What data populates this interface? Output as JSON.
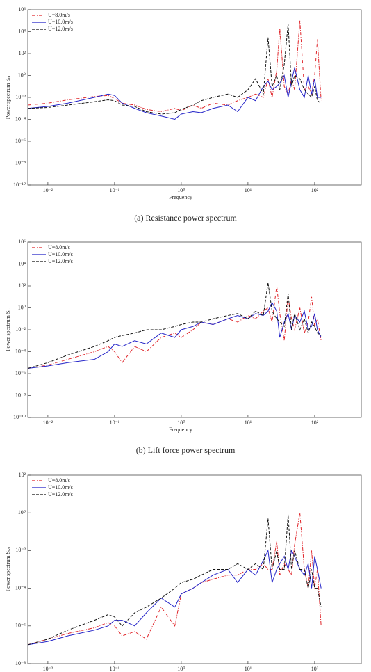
{
  "chart_data": [
    {
      "type": "line",
      "log_x": true,
      "log_y": true,
      "legend": "upper left",
      "xlabel": "Frequency",
      "ylabel": "Power spectrum S",
      "ylabel_sub": "D",
      "caption": "(a) Resistance power spectrum",
      "xlim": [
        0.005,
        500
      ],
      "ylim": [
        1e-10,
        1000000
      ],
      "xticks": [
        {
          "value": 0.01,
          "label": "10⁻²"
        },
        {
          "value": 0.1,
          "label": "10⁻¹"
        },
        {
          "value": 1,
          "label": "10⁰"
        },
        {
          "value": 10,
          "label": "10¹"
        },
        {
          "value": 100,
          "label": "10²"
        }
      ],
      "yticks": [
        {
          "value": 1e-10,
          "label": "10⁻¹⁰"
        },
        {
          "value": 1e-08,
          "label": "10⁻⁸"
        },
        {
          "value": 1e-06,
          "label": "10⁻⁶"
        },
        {
          "value": 0.0001,
          "label": "10⁻⁴"
        },
        {
          "value": 0.01,
          "label": "10⁻²"
        },
        {
          "value": 1,
          "label": "10⁰"
        },
        {
          "value": 100,
          "label": "10²"
        },
        {
          "value": 10000,
          "label": "10⁴"
        },
        {
          "value": 1000000,
          "label": "10⁶"
        }
      ],
      "x": [
        0.005,
        0.01,
        0.02,
        0.05,
        0.08,
        0.1,
        0.13,
        0.2,
        0.3,
        0.5,
        0.8,
        1,
        1.5,
        2,
        3,
        5,
        7,
        10,
        13,
        17,
        20,
        23,
        27,
        30,
        35,
        40,
        45,
        50,
        60,
        70,
        80,
        90,
        100,
        110,
        125
      ],
      "series": [
        {
          "name": "U=8.0m/s",
          "color": "#e0262b",
          "dash": "dashdot",
          "values": [
            0.002,
            0.003,
            0.006,
            0.012,
            0.015,
            0.008,
            0.003,
            0.002,
            0.0008,
            0.0005,
            0.001,
            0.0006,
            0.002,
            0.001,
            0.003,
            0.002,
            0.005,
            0.01,
            0.02,
            0.01,
            0.5,
            0.01,
            3,
            20000,
            0.1,
            0.02,
            0.5,
            0.05,
            100000,
            0.05,
            0.1,
            0.02,
            1,
            2000,
            0.005
          ]
        },
        {
          "name": "U=10.0m/s",
          "color": "#2323c8",
          "dash": "solid",
          "values": [
            0.001,
            0.0015,
            0.003,
            0.01,
            0.02,
            0.015,
            0.003,
            0.001,
            0.0004,
            0.0002,
            0.0001,
            0.0003,
            0.0005,
            0.0004,
            0.001,
            0.002,
            0.0005,
            0.01,
            0.005,
            0.1,
            0.3,
            0.05,
            0.1,
            0.2,
            1,
            0.01,
            0.3,
            5,
            0.05,
            0.01,
            1,
            0.02,
            0.5,
            0.01,
            0.01
          ]
        },
        {
          "name": "U=12.0m/s",
          "color": "#111111",
          "dash": "dash",
          "values": [
            0.001,
            0.0012,
            0.002,
            0.004,
            0.006,
            0.005,
            0.002,
            0.0015,
            0.0005,
            0.0003,
            0.0004,
            0.0008,
            0.002,
            0.005,
            0.01,
            0.02,
            0.01,
            0.05,
            0.5,
            0.02,
            3000,
            0.1,
            1,
            0.05,
            10,
            50000,
            0.1,
            1,
            0.5,
            0.05,
            0.02,
            0.01,
            0.1,
            0.005,
            0.003
          ]
        }
      ]
    },
    {
      "type": "line",
      "log_x": true,
      "log_y": true,
      "legend": "upper left",
      "xlabel": "Frequency",
      "ylabel": "Power spectrum S",
      "ylabel_sub": "L",
      "caption": "(b) Lift force power spectrum",
      "xlim": [
        0.005,
        500
      ],
      "ylim": [
        1e-10,
        1000000
      ],
      "xticks": [
        {
          "value": 0.01,
          "label": "10⁻²"
        },
        {
          "value": 0.1,
          "label": "10⁻¹"
        },
        {
          "value": 1,
          "label": "10⁰"
        },
        {
          "value": 10,
          "label": "10¹"
        },
        {
          "value": 100,
          "label": "10²"
        }
      ],
      "yticks": [
        {
          "value": 1e-10,
          "label": "10⁻¹⁰"
        },
        {
          "value": 1e-08,
          "label": "10⁻⁸"
        },
        {
          "value": 1e-06,
          "label": "10⁻⁶"
        },
        {
          "value": 0.0001,
          "label": "10⁻⁴"
        },
        {
          "value": 0.01,
          "label": "10⁻²"
        },
        {
          "value": 1,
          "label": "10⁰"
        },
        {
          "value": 100,
          "label": "10²"
        },
        {
          "value": 10000,
          "label": "10⁴"
        },
        {
          "value": 1000000,
          "label": "10⁶"
        }
      ],
      "x": [
        0.005,
        0.01,
        0.02,
        0.05,
        0.08,
        0.1,
        0.13,
        0.2,
        0.3,
        0.5,
        0.8,
        1,
        1.5,
        2,
        3,
        5,
        7,
        10,
        13,
        17,
        20,
        23,
        27,
        30,
        35,
        40,
        45,
        50,
        60,
        70,
        80,
        90,
        100,
        110,
        125
      ],
      "series": [
        {
          "name": "U=8.0m/s",
          "color": "#e0262b",
          "dash": "dashdot",
          "values": [
            3e-06,
            6e-06,
            2e-05,
            0.0001,
            0.0003,
            0.0001,
            1e-05,
            0.0003,
            0.0001,
            0.002,
            0.005,
            0.002,
            0.01,
            0.05,
            0.03,
            0.1,
            0.05,
            0.2,
            0.1,
            0.5,
            1,
            0.05,
            100,
            0.3,
            0.001,
            10,
            0.1,
            0.01,
            1,
            0.005,
            0.05,
            10,
            0.02,
            0.1,
            0.001
          ]
        },
        {
          "name": "U=10.0m/s",
          "color": "#2323c8",
          "dash": "solid",
          "values": [
            3e-06,
            5e-06,
            1e-05,
            2e-05,
            0.0001,
            0.0005,
            0.0003,
            0.001,
            0.0005,
            0.005,
            0.002,
            0.01,
            0.02,
            0.05,
            0.03,
            0.1,
            0.2,
            0.1,
            0.3,
            0.2,
            0.5,
            3,
            0.5,
            0.002,
            0.05,
            0.3,
            0.01,
            0.2,
            0.05,
            0.5,
            0.01,
            0.02,
            0.3,
            0.01,
            0.002
          ]
        },
        {
          "name": "U=12.0m/s",
          "color": "#111111",
          "dash": "dash",
          "values": [
            3e-06,
            1e-05,
            5e-05,
            0.0003,
            0.001,
            0.002,
            0.003,
            0.005,
            0.01,
            0.01,
            0.02,
            0.03,
            0.05,
            0.05,
            0.1,
            0.2,
            0.3,
            0.1,
            0.5,
            0.2,
            200,
            0.5,
            0.1,
            0.05,
            0.02,
            20,
            0.01,
            0.3,
            0.01,
            0.1,
            0.005,
            0.05,
            0.02,
            0.005,
            0.003
          ]
        }
      ]
    },
    {
      "type": "line",
      "log_x": true,
      "log_y": true,
      "legend": "upper left",
      "xlabel": "Frequency",
      "ylabel": "Power spectrum S",
      "ylabel_sub": "M",
      "xlim": [
        0.005,
        500
      ],
      "ylim": [
        1e-08,
        100
      ],
      "xticks": [
        {
          "value": 0.01,
          "label": "10⁻²"
        },
        {
          "value": 0.1,
          "label": "10⁻¹"
        },
        {
          "value": 1,
          "label": "10⁰"
        },
        {
          "value": 10,
          "label": "10¹"
        },
        {
          "value": 100,
          "label": "10²"
        }
      ],
      "yticks": [
        {
          "value": 1e-08,
          "label": "10⁻⁸"
        },
        {
          "value": 1e-06,
          "label": "10⁻⁶"
        },
        {
          "value": 0.0001,
          "label": "10⁻⁴"
        },
        {
          "value": 0.01,
          "label": "10⁻²"
        },
        {
          "value": 1,
          "label": "10⁰"
        },
        {
          "value": 100,
          "label": "10²"
        }
      ],
      "x": [
        0.005,
        0.01,
        0.02,
        0.05,
        0.08,
        0.1,
        0.13,
        0.2,
        0.3,
        0.5,
        0.8,
        1,
        1.5,
        2,
        3,
        5,
        7,
        10,
        13,
        17,
        20,
        23,
        27,
        30,
        35,
        40,
        45,
        50,
        60,
        70,
        80,
        90,
        100,
        110,
        125
      ],
      "series": [
        {
          "name": "U=8.0m/s",
          "color": "#e0262b",
          "dash": "dashdot",
          "values": [
            1e-07,
            2e-07,
            4e-07,
            8e-07,
            1.5e-06,
            1e-06,
            3e-07,
            5e-07,
            2e-07,
            1e-05,
            1e-06,
            5e-05,
            0.0001,
            0.0002,
            0.0003,
            0.0005,
            0.0005,
            0.001,
            0.001,
            0.002,
            0.001,
            0.001,
            0.03,
            0.0005,
            0.002,
            0.001,
            0.0005,
            0.02,
            1,
            0.001,
            0.0001,
            0.01,
            0.0001,
            0.001,
            1e-06
          ]
        },
        {
          "name": "U=10.0m/s",
          "color": "#2323c8",
          "dash": "solid",
          "values": [
            1e-07,
            1.5e-07,
            3e-07,
            6e-07,
            1e-06,
            2e-06,
            2e-06,
            1e-06,
            5e-06,
            3e-05,
            1e-05,
            5e-05,
            0.0001,
            0.0002,
            0.0005,
            0.001,
            0.0002,
            0.001,
            0.0005,
            0.003,
            0.01,
            0.0002,
            0.001,
            0.002,
            0.005,
            0.001,
            0.01,
            0.005,
            0.001,
            0.0005,
            0.002,
            0.0001,
            0.005,
            0.001,
            0.0001
          ]
        },
        {
          "name": "U=12.0m/s",
          "color": "#111111",
          "dash": "dash",
          "values": [
            1e-07,
            2e-07,
            6e-07,
            2e-06,
            4e-06,
            3e-06,
            1e-06,
            5e-06,
            1e-05,
            3e-05,
            0.0001,
            0.0002,
            0.0003,
            0.0005,
            0.001,
            0.001,
            0.002,
            0.001,
            0.002,
            0.001,
            0.5,
            0.001,
            0.01,
            0.001,
            0.001,
            0.8,
            0.001,
            0.01,
            0.001,
            0.001,
            0.0001,
            0.001,
            0.0001,
            0.0001,
            1e-05
          ]
        }
      ]
    }
  ]
}
